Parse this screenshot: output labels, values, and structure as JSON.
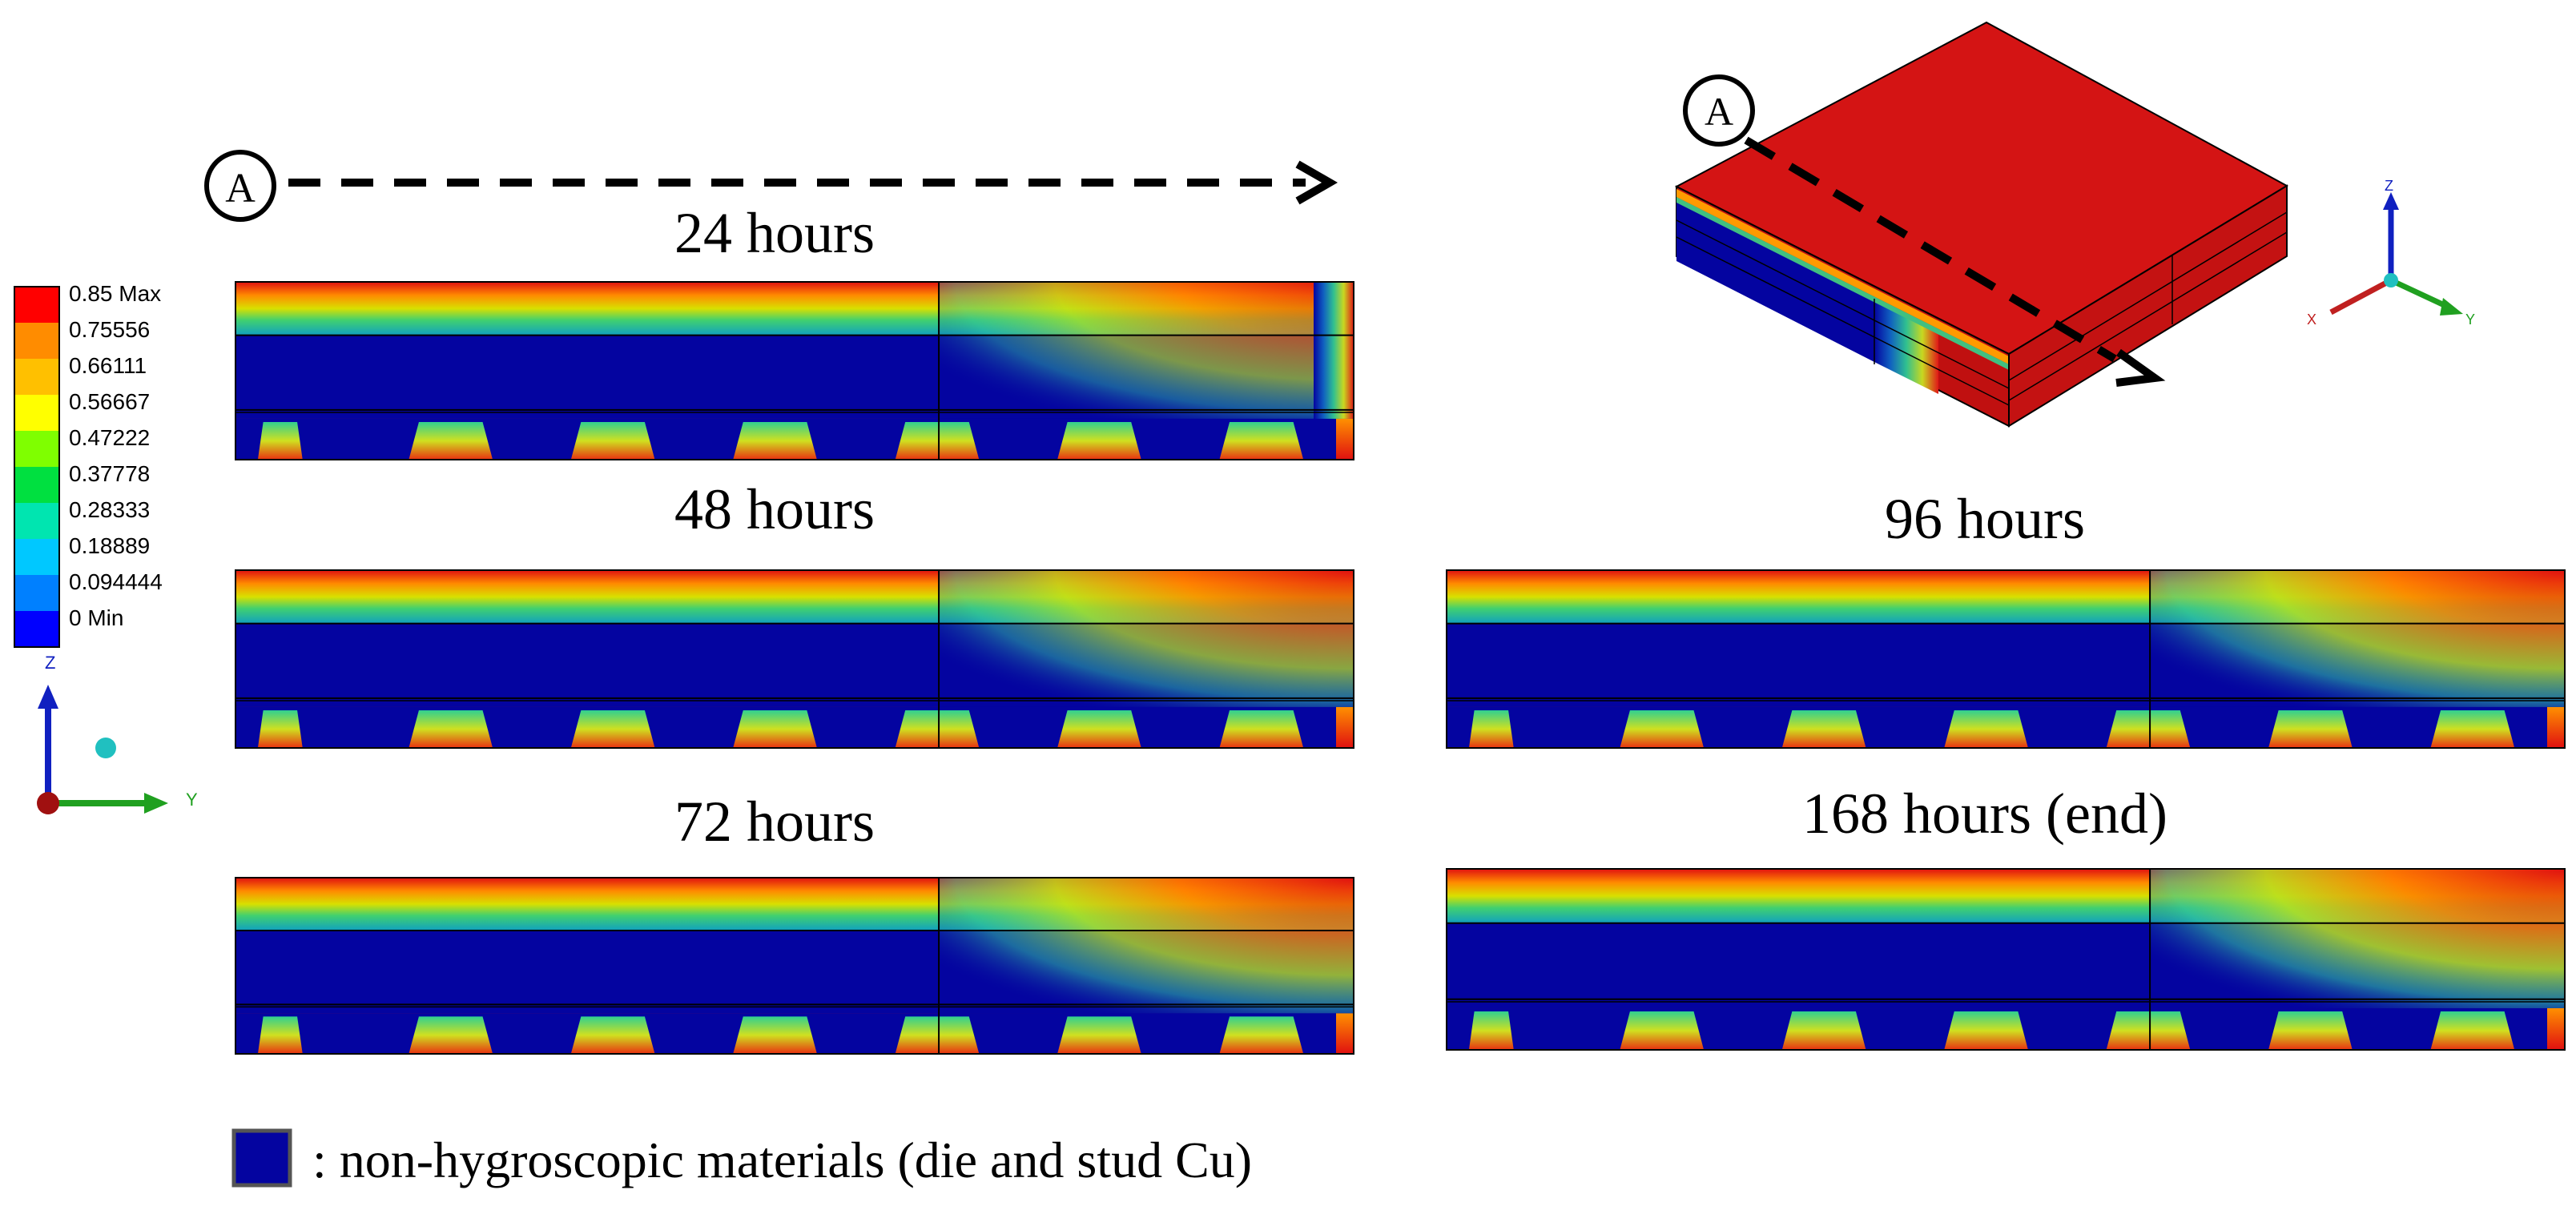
{
  "section_label": "A",
  "legend": {
    "title": "",
    "labels": [
      "0.85 Max",
      "0.75556",
      "0.66111",
      "0.56667",
      "0.47222",
      "0.37778",
      "0.28333",
      "0.18889",
      "0.094444",
      "0 Min"
    ],
    "colors": [
      "#ff0000",
      "#ff8c00",
      "#ffc000",
      "#ffff00",
      "#7fff00",
      "#00e040",
      "#00e5b0",
      "#00c8ff",
      "#0080ff",
      "#0000ff"
    ]
  },
  "axes": {
    "z": "Z",
    "y": "Y",
    "x": "X"
  },
  "panels": [
    {
      "name": "24-hours",
      "label": "24 hours"
    },
    {
      "name": "48-hours",
      "label": "48 hours"
    },
    {
      "name": "72-hours",
      "label": "72 hours"
    },
    {
      "name": "96-hours",
      "label": "96 hours"
    },
    {
      "name": "168-hours",
      "label": "168 hours (end)"
    }
  ],
  "footnote": ": non-hygroscopic materials (die and stud Cu)",
  "colors": {
    "saturated": "#d41414",
    "die": "#0404a0",
    "outline": "#000000"
  }
}
